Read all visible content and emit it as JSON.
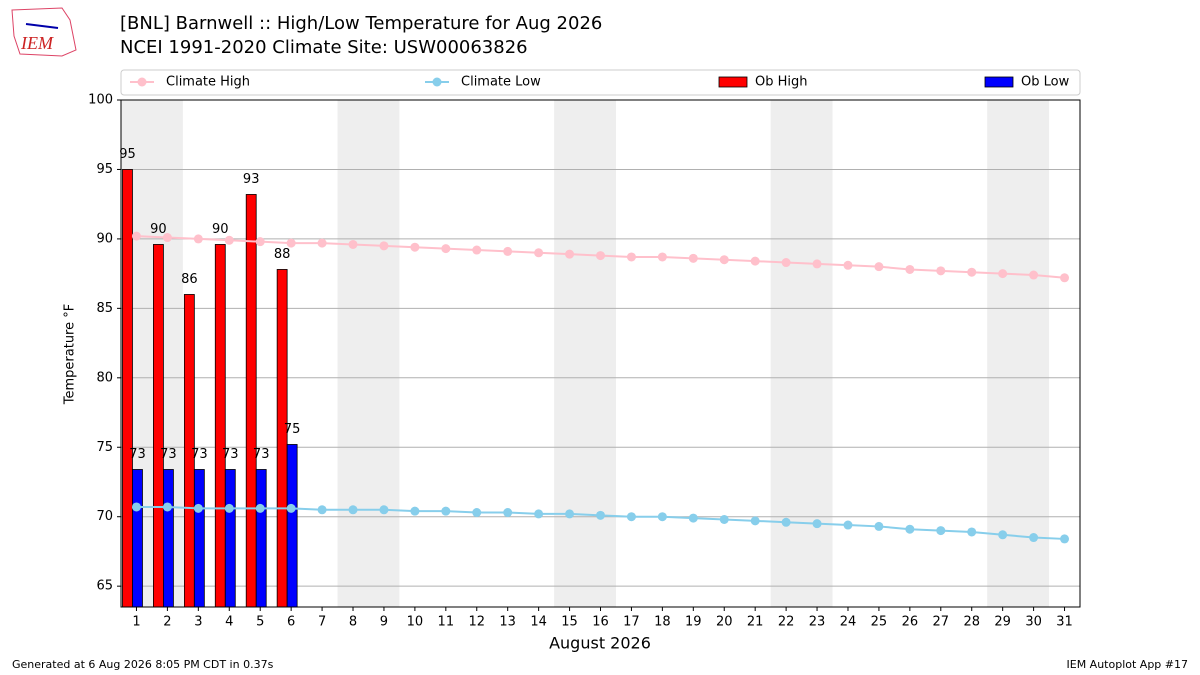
{
  "logo": "IEM",
  "footer_left": "Generated at 6 Aug 2026 8:05 PM CDT in 0.37s",
  "footer_right": "IEM Autoplot App #17",
  "chart_data": {
    "type": "bar",
    "title": "[BNL] Barnwell :: High/Low Temperature for Aug 2026",
    "subtitle": "NCEI 1991-2020 Climate Site: USW00063826",
    "xlabel": "August 2026",
    "ylabel": "Temperature °F",
    "x": [
      1,
      2,
      3,
      4,
      5,
      6,
      7,
      8,
      9,
      10,
      11,
      12,
      13,
      14,
      15,
      16,
      17,
      18,
      19,
      20,
      21,
      22,
      23,
      24,
      25,
      26,
      27,
      28,
      29,
      30,
      31
    ],
    "xlim": [
      0.5,
      31.5
    ],
    "xticks": [
      1,
      2,
      3,
      4,
      5,
      6,
      7,
      8,
      9,
      10,
      11,
      12,
      13,
      14,
      15,
      16,
      17,
      18,
      19,
      20,
      21,
      22,
      23,
      24,
      25,
      26,
      27,
      28,
      29,
      30,
      31
    ],
    "ylim": [
      63.5,
      100
    ],
    "yticks": [
      65,
      70,
      75,
      80,
      85,
      90,
      95,
      100
    ],
    "grid": true,
    "shaded_ranges": [
      [
        0.5,
        2.5
      ],
      [
        7.5,
        9.5
      ],
      [
        14.5,
        16.5
      ],
      [
        21.5,
        23.5
      ],
      [
        28.5,
        30.5
      ]
    ],
    "shade_color": "#eeeeee",
    "legend": "top",
    "series": [
      {
        "name": "Climate High",
        "type": "line",
        "color": "pink",
        "values": [
          90.2,
          90.1,
          90.0,
          89.9,
          89.8,
          89.7,
          89.7,
          89.6,
          89.5,
          89.4,
          89.3,
          89.2,
          89.1,
          89.0,
          88.9,
          88.8,
          88.7,
          88.7,
          88.6,
          88.5,
          88.4,
          88.3,
          88.2,
          88.1,
          88.0,
          87.8,
          87.7,
          87.6,
          87.5,
          87.4,
          87.2
        ]
      },
      {
        "name": "Climate Low",
        "type": "line",
        "color": "skyblue",
        "values": [
          70.7,
          70.7,
          70.6,
          70.6,
          70.6,
          70.6,
          70.5,
          70.5,
          70.5,
          70.4,
          70.4,
          70.3,
          70.3,
          70.2,
          70.2,
          70.1,
          70.0,
          70.0,
          69.9,
          69.8,
          69.7,
          69.6,
          69.5,
          69.4,
          69.3,
          69.1,
          69.0,
          68.9,
          68.7,
          68.5,
          68.4
        ]
      },
      {
        "name": "Ob High",
        "type": "bar",
        "color": "red",
        "values": [
          95,
          89.6,
          86,
          89.6,
          93.2,
          87.8,
          null,
          null,
          null,
          null,
          null,
          null,
          null,
          null,
          null,
          null,
          null,
          null,
          null,
          null,
          null,
          null,
          null,
          null,
          null,
          null,
          null,
          null,
          null,
          null,
          null
        ],
        "value_labels": [
          "95",
          "90",
          "86",
          "90",
          "93",
          "88",
          null,
          null,
          null,
          null,
          null,
          null,
          null,
          null,
          null,
          null,
          null,
          null,
          null,
          null,
          null,
          null,
          null,
          null,
          null,
          null,
          null,
          null,
          null,
          null,
          null
        ]
      },
      {
        "name": "Ob Low",
        "type": "bar",
        "color": "blue",
        "values": [
          73.4,
          73.4,
          73.4,
          73.4,
          73.4,
          75.2,
          null,
          null,
          null,
          null,
          null,
          null,
          null,
          null,
          null,
          null,
          null,
          null,
          null,
          null,
          null,
          null,
          null,
          null,
          null,
          null,
          null,
          null,
          null,
          null,
          null
        ],
        "value_labels": [
          "73",
          "73",
          "73",
          "73",
          "73",
          "75",
          null,
          null,
          null,
          null,
          null,
          null,
          null,
          null,
          null,
          null,
          null,
          null,
          null,
          null,
          null,
          null,
          null,
          null,
          null,
          null,
          null,
          null,
          null,
          null,
          null
        ]
      }
    ]
  }
}
